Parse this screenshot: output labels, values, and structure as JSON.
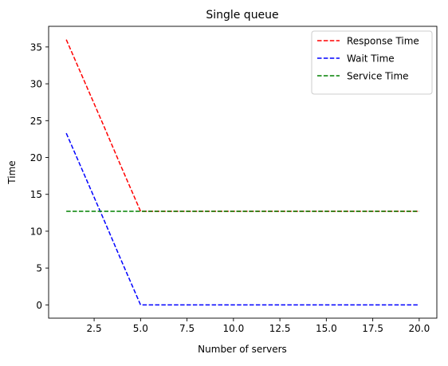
{
  "chart_data": {
    "type": "line",
    "title": "Single queue",
    "xlabel": "Number of servers",
    "ylabel": "Time",
    "xlim": [
      0.05,
      20.95
    ],
    "ylim": [
      -1.8,
      37.8
    ],
    "xticks": [
      2.5,
      5.0,
      7.5,
      10.0,
      12.5,
      15.0,
      17.5,
      20.0
    ],
    "xtick_labels": [
      "2.5",
      "5.0",
      "7.5",
      "10.0",
      "12.5",
      "15.0",
      "17.5",
      "20.0"
    ],
    "yticks": [
      0,
      5,
      10,
      15,
      20,
      25,
      30,
      35
    ],
    "ytick_labels": [
      "0",
      "5",
      "10",
      "15",
      "20",
      "25",
      "30",
      "35"
    ],
    "grid": false,
    "legend_position": "top-right",
    "x": [
      1,
      2,
      3,
      4,
      5,
      6,
      7,
      8,
      9,
      10,
      11,
      12,
      13,
      14,
      15,
      16,
      17,
      18,
      19,
      20
    ],
    "series": [
      {
        "name": "Response Time",
        "color": "#ff0000",
        "style": "dashed",
        "values": [
          36.0,
          30.2,
          24.4,
          18.5,
          12.7,
          12.7,
          12.7,
          12.7,
          12.7,
          12.7,
          12.7,
          12.7,
          12.7,
          12.7,
          12.7,
          12.7,
          12.7,
          12.7,
          12.7,
          12.7
        ]
      },
      {
        "name": "Wait Time",
        "color": "#0000ff",
        "style": "dashed",
        "values": [
          23.3,
          17.5,
          11.7,
          5.8,
          0.0,
          0.0,
          0.0,
          0.0,
          0.0,
          0.0,
          0.0,
          0.0,
          0.0,
          0.0,
          0.0,
          0.0,
          0.0,
          0.0,
          0.0,
          0.0
        ]
      },
      {
        "name": "Service Time",
        "color": "#008000",
        "style": "dashed",
        "values": [
          12.7,
          12.7,
          12.7,
          12.7,
          12.7,
          12.7,
          12.7,
          12.7,
          12.7,
          12.7,
          12.7,
          12.7,
          12.7,
          12.7,
          12.7,
          12.7,
          12.7,
          12.7,
          12.7,
          12.7
        ]
      }
    ]
  }
}
